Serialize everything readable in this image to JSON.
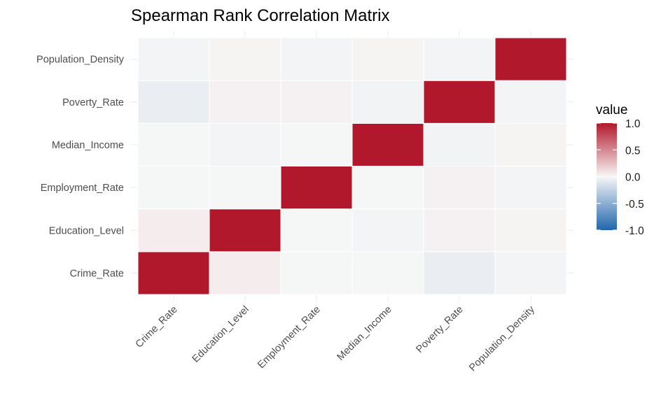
{
  "chart_data": {
    "type": "heatmap",
    "title": "Spearman Rank Correlation Matrix",
    "xlabel": "",
    "ylabel": "",
    "variables": [
      "Crime_Rate",
      "Education_Level",
      "Employment_Rate",
      "Median_Income",
      "Poverty_Rate",
      "Population_Density"
    ],
    "matrix": [
      [
        1.0,
        0.05,
        -0.01,
        -0.01,
        -0.06,
        -0.02
      ],
      [
        0.05,
        1.0,
        -0.01,
        -0.02,
        0.03,
        0.02
      ],
      [
        -0.01,
        -0.01,
        1.0,
        -0.01,
        0.03,
        -0.02
      ],
      [
        -0.01,
        -0.02,
        -0.01,
        1.0,
        -0.03,
        0.02
      ],
      [
        -0.06,
        0.03,
        0.03,
        -0.03,
        1.0,
        -0.02
      ],
      [
        -0.02,
        0.02,
        -0.02,
        0.02,
        -0.02,
        1.0
      ]
    ],
    "legend": {
      "title": "value",
      "ticks": [
        1.0,
        0.5,
        0.0,
        -0.5,
        -1.0
      ],
      "tick_labels": [
        "1.0",
        "0.5",
        "0.0",
        "-0.5",
        "-1.0"
      ],
      "position": "right"
    },
    "scale": {
      "limits": [
        -1,
        1
      ],
      "low": "#2166ac",
      "mid": "#f7f7f7",
      "high": "#b2182b"
    },
    "grid": true
  }
}
